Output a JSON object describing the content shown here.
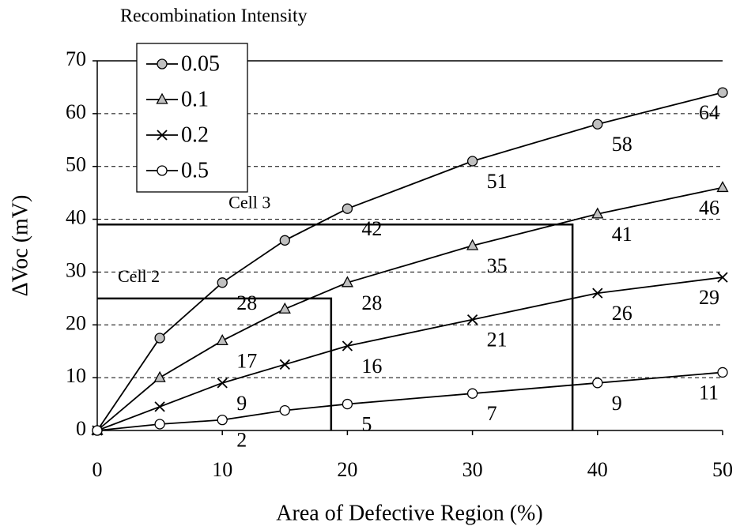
{
  "chart_data": {
    "type": "line",
    "title": "Recombination Intensity",
    "x_label": "Area of Defective Region (%)",
    "y_label": "ΔVoc (mV)",
    "x": [
      0,
      5,
      10,
      15,
      20,
      30,
      40,
      50
    ],
    "xlim": [
      0,
      50
    ],
    "xticks": [
      0,
      10,
      20,
      30,
      40,
      50
    ],
    "ylim": [
      0,
      70
    ],
    "yticks": [
      0,
      10,
      20,
      30,
      40,
      50,
      60,
      70
    ],
    "grid": true,
    "legend": "upper left",
    "series": [
      {
        "name": "0.05",
        "color": "#000000",
        "marker": "circle-filled",
        "marker_fill": "#c0c0c0",
        "values": [
          0,
          17.5,
          28,
          36,
          42,
          51,
          58,
          64
        ],
        "value_labels": [
          null,
          null,
          "28",
          null,
          "42",
          "51",
          "58",
          "64"
        ]
      },
      {
        "name": "0.1",
        "color": "#000000",
        "marker": "triangle",
        "marker_fill": "#c0c0c0",
        "values": [
          0,
          10,
          17,
          23,
          28,
          35,
          41,
          46
        ],
        "value_labels": [
          null,
          null,
          "17",
          null,
          "28",
          "35",
          "41",
          "46"
        ]
      },
      {
        "name": "0.2",
        "color": "#000000",
        "marker": "x",
        "marker_fill": "#000000",
        "values": [
          0,
          4.5,
          9,
          12.5,
          16,
          21,
          26,
          29
        ],
        "value_labels": [
          null,
          null,
          "9",
          null,
          "16",
          "21",
          "26",
          "29"
        ]
      },
      {
        "name": "0.5",
        "color": "#000000",
        "marker": "circle-open",
        "marker_fill": "#ffffff",
        "values": [
          0,
          1.2,
          2,
          3.8,
          5,
          7,
          9,
          11
        ],
        "value_labels": [
          null,
          null,
          "2",
          null,
          "5",
          "7",
          "9",
          "11"
        ]
      }
    ],
    "annotations": [
      {
        "text": "Cell 3",
        "x": 38,
        "y": 39
      },
      {
        "text": "Cell 2",
        "x": 18.7,
        "y": 25
      }
    ]
  }
}
